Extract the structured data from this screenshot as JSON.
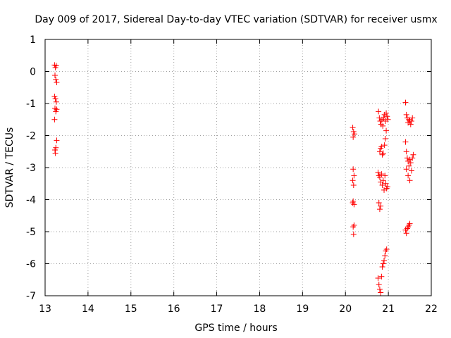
{
  "chart_data": {
    "type": "scatter",
    "title": "Day 009 of 2017, Sidereal Day-to-day VTEC variation (SDTVAR) for receiver usmx",
    "xlabel": "GPS time / hours",
    "ylabel": "SDTVAR / TECUs",
    "xlim": [
      13,
      22
    ],
    "ylim": [
      -7,
      1
    ],
    "xticks": [
      "13",
      "14",
      "15",
      "16",
      "17",
      "18",
      "19",
      "20",
      "21",
      "22"
    ],
    "yticks": [
      "1",
      "0",
      "-1",
      "-2",
      "-3",
      "-4",
      "-5",
      "-6",
      "-7"
    ],
    "grid": true,
    "legend": "none",
    "marker": "+",
    "colors": {
      "points": "#ff0000"
    },
    "series": [
      {
        "points": [
          [
            13.22,
            0.2
          ],
          [
            13.24,
            0.12
          ],
          [
            13.26,
            0.18
          ],
          [
            13.23,
            -0.12
          ],
          [
            13.25,
            -0.25
          ],
          [
            13.27,
            -0.34
          ],
          [
            13.22,
            -0.78
          ],
          [
            13.24,
            -0.85
          ],
          [
            13.26,
            -0.95
          ],
          [
            13.23,
            -1.15
          ],
          [
            13.25,
            -1.25
          ],
          [
            13.27,
            -1.18
          ],
          [
            13.22,
            -1.5
          ],
          [
            13.23,
            -2.45
          ],
          [
            13.25,
            -2.38
          ],
          [
            13.24,
            -2.55
          ],
          [
            13.27,
            -2.15
          ],
          [
            20.17,
            -1.75
          ],
          [
            20.19,
            -1.88
          ],
          [
            20.21,
            -1.95
          ],
          [
            20.18,
            -2.05
          ],
          [
            20.18,
            -3.05
          ],
          [
            20.2,
            -3.25
          ],
          [
            20.17,
            -3.4
          ],
          [
            20.19,
            -3.55
          ],
          [
            20.18,
            -4.05
          ],
          [
            20.2,
            -4.15
          ],
          [
            20.17,
            -4.1
          ],
          [
            20.18,
            -4.85
          ],
          [
            20.2,
            -4.8
          ],
          [
            20.19,
            -5.08
          ],
          [
            20.77,
            -1.25
          ],
          [
            20.79,
            -1.45
          ],
          [
            20.81,
            -1.55
          ],
          [
            20.83,
            -1.65
          ],
          [
            20.85,
            -1.5
          ],
          [
            20.87,
            -1.7
          ],
          [
            20.89,
            -1.45
          ],
          [
            20.91,
            -1.35
          ],
          [
            20.93,
            -1.55
          ],
          [
            20.95,
            -1.3
          ],
          [
            20.97,
            -1.4
          ],
          [
            20.99,
            -1.5
          ],
          [
            20.8,
            -2.5
          ],
          [
            20.82,
            -2.4
          ],
          [
            20.84,
            -2.35
          ],
          [
            20.86,
            -2.6
          ],
          [
            20.88,
            -2.55
          ],
          [
            20.91,
            -2.3
          ],
          [
            20.93,
            -2.1
          ],
          [
            20.95,
            -1.85
          ],
          [
            20.76,
            -3.15
          ],
          [
            20.78,
            -3.25
          ],
          [
            20.8,
            -3.3
          ],
          [
            20.82,
            -3.45
          ],
          [
            20.84,
            -3.2
          ],
          [
            20.86,
            -3.55
          ],
          [
            20.88,
            -3.4
          ],
          [
            20.9,
            -3.7
          ],
          [
            20.92,
            -3.25
          ],
          [
            20.94,
            -3.5
          ],
          [
            20.96,
            -3.65
          ],
          [
            20.98,
            -3.6
          ],
          [
            20.78,
            -4.1
          ],
          [
            20.8,
            -4.3
          ],
          [
            20.82,
            -4.2
          ],
          [
            20.76,
            -6.45
          ],
          [
            20.78,
            -6.65
          ],
          [
            20.8,
            -6.8
          ],
          [
            20.82,
            -6.9
          ],
          [
            20.84,
            -6.4
          ],
          [
            20.86,
            -6.1
          ],
          [
            20.88,
            -6.0
          ],
          [
            20.9,
            -5.9
          ],
          [
            20.92,
            -5.75
          ],
          [
            20.94,
            -5.6
          ],
          [
            20.96,
            -5.55
          ],
          [
            21.4,
            -0.97
          ],
          [
            21.42,
            -1.35
          ],
          [
            21.44,
            -1.45
          ],
          [
            21.46,
            -1.6
          ],
          [
            21.48,
            -1.5
          ],
          [
            21.5,
            -1.55
          ],
          [
            21.52,
            -1.65
          ],
          [
            21.54,
            -1.55
          ],
          [
            21.56,
            -1.45
          ],
          [
            21.4,
            -2.2
          ],
          [
            21.42,
            -2.5
          ],
          [
            21.44,
            -2.7
          ],
          [
            21.46,
            -2.8
          ],
          [
            21.48,
            -2.95
          ],
          [
            21.5,
            -2.75
          ],
          [
            21.52,
            -2.85
          ],
          [
            21.54,
            -3.1
          ],
          [
            21.56,
            -2.7
          ],
          [
            21.58,
            -2.6
          ],
          [
            21.42,
            -3.05
          ],
          [
            21.46,
            -3.25
          ],
          [
            21.5,
            -3.4
          ],
          [
            21.4,
            -4.95
          ],
          [
            21.42,
            -5.05
          ],
          [
            21.44,
            -4.9
          ],
          [
            21.46,
            -4.85
          ],
          [
            21.48,
            -4.8
          ],
          [
            21.5,
            -4.75
          ]
        ]
      }
    ]
  }
}
